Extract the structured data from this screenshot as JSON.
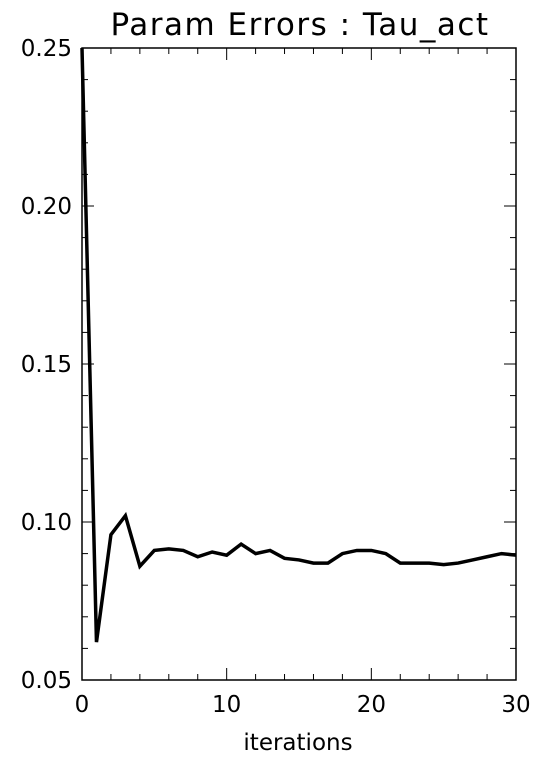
{
  "chart_data": {
    "type": "line",
    "title": "Param Errors : Tau_act",
    "xlabel": "iterations",
    "ylabel": "",
    "xlim": [
      0,
      30
    ],
    "ylim": [
      0.05,
      0.25
    ],
    "xticks": [
      0,
      10,
      20,
      30
    ],
    "xtick_labels": [
      "0",
      "10",
      "20",
      "30"
    ],
    "yticks": [
      0.05,
      0.1,
      0.15,
      0.2,
      0.25
    ],
    "ytick_labels": [
      "0.05",
      "0.10",
      "0.15",
      "0.20",
      "0.25"
    ],
    "grid": false,
    "legend": "none",
    "line_color": "#000000",
    "series": [
      {
        "x": [
          0,
          1,
          2,
          3,
          4,
          5,
          6,
          7,
          8,
          9,
          10,
          11,
          12,
          13,
          14,
          15,
          16,
          17,
          18,
          19,
          20,
          21,
          22,
          23,
          24,
          25,
          26,
          27,
          28,
          29,
          30
        ],
        "y": [
          0.25,
          0.062,
          0.096,
          0.102,
          0.086,
          0.091,
          0.0915,
          0.091,
          0.089,
          0.0905,
          0.0895,
          0.093,
          0.09,
          0.091,
          0.0885,
          0.088,
          0.087,
          0.087,
          0.09,
          0.091,
          0.091,
          0.09,
          0.087,
          0.087,
          0.087,
          0.0865,
          0.087,
          0.088,
          0.089,
          0.09,
          0.0895
        ]
      }
    ]
  }
}
